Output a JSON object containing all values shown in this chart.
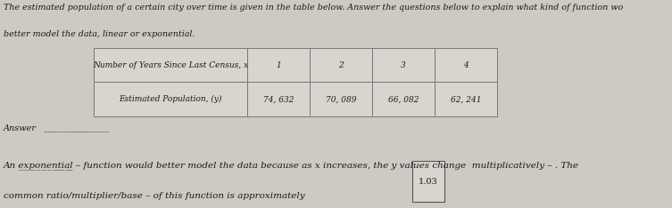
{
  "title_line1": "The estimated population of a certain city over time is given in the table below. Answer the questions below to explain what kind of function wo",
  "title_line2": "better model the data, linear or exponential.",
  "table_col0_header": "Number of Years Since Last Census, x",
  "table_col_headers": [
    "1",
    "2",
    "3",
    "4"
  ],
  "table_row_label": "Estimated Population, (y)",
  "table_values": [
    "74, 632",
    "70, 089",
    "66, 082",
    "62, 241"
  ],
  "answer_label": "Answer",
  "answer_underline": "_______________",
  "box_value": "1.03",
  "bg_color": "#cdc9c3",
  "text_color": "#1a1a1a",
  "table_border_color": "#777777",
  "table_bg": "#d8d4ce",
  "font_size_title": 6.8,
  "font_size_body": 7.5,
  "font_size_table": 6.5,
  "font_size_answer": 7.0
}
